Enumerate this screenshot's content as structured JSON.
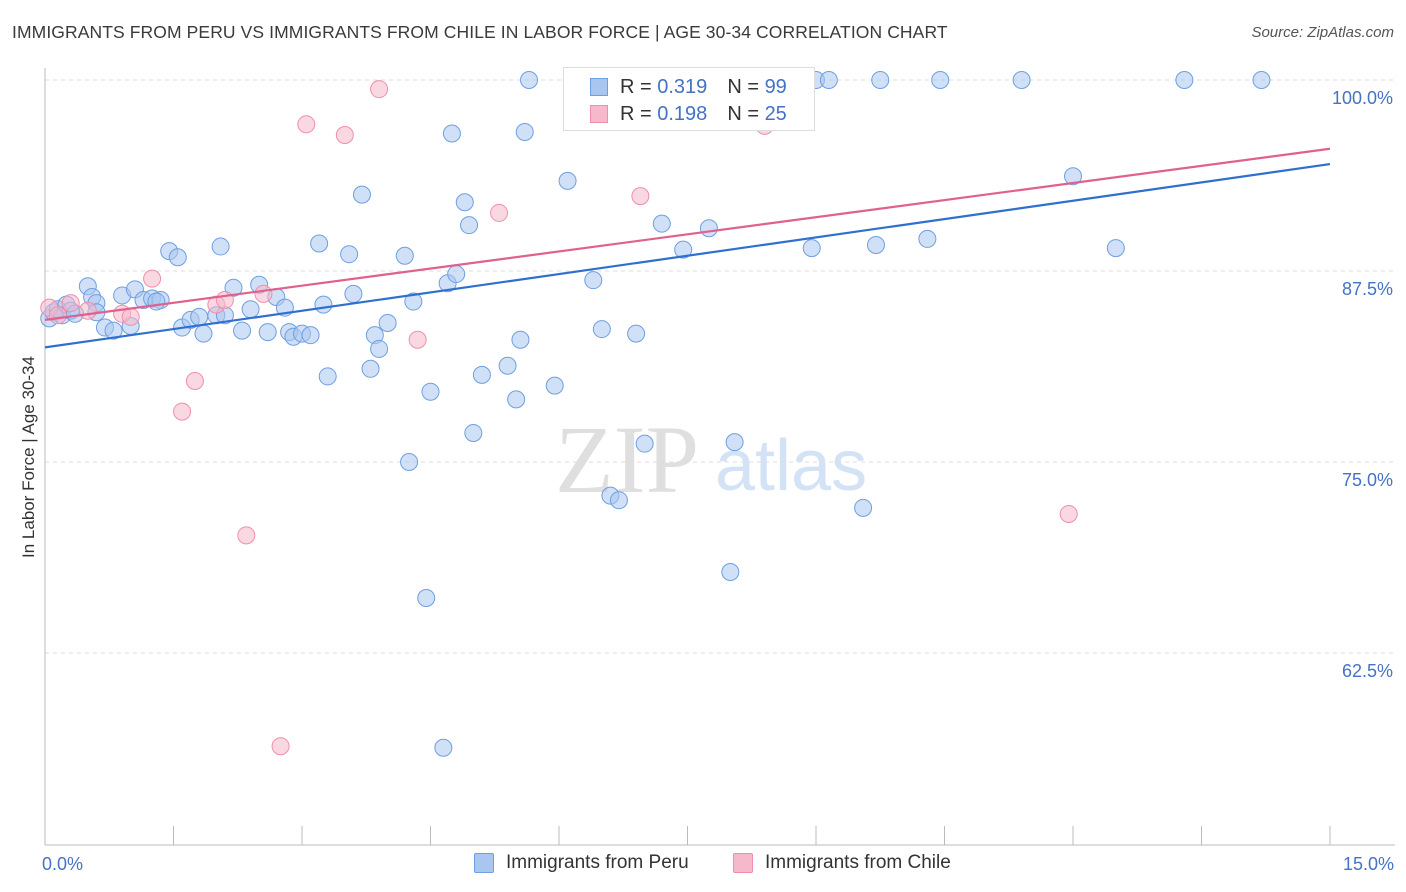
{
  "title": "IMMIGRANTS FROM PERU VS IMMIGRANTS FROM CHILE IN LABOR FORCE | AGE 30-34 CORRELATION CHART",
  "source": "Source: ZipAtlas.com",
  "watermark": {
    "zip": "ZIP",
    "atlas": "atlas"
  },
  "legend": {
    "peru": {
      "r_label": "R =",
      "r_value": "0.319",
      "n_label": "N =",
      "n_value": "99"
    },
    "chile": {
      "r_label": "R =",
      "r_value": "0.198",
      "n_label": "N =",
      "n_value": "25"
    }
  },
  "bottom_legend": {
    "peru": "Immigrants from Peru",
    "chile": "Immigrants from Chile"
  },
  "colors": {
    "peru_fill": "#a9c6f0",
    "peru_stroke": "#6f9fe0",
    "peru_line": "#2f6fcf",
    "chile_fill": "#f6b8cb",
    "chile_stroke": "#ee8fab",
    "chile_line": "#e0608e",
    "tick_label": "#4472c4"
  },
  "chart_data": {
    "type": "scatter",
    "title": "IMMIGRANTS FROM PERU VS IMMIGRANTS FROM CHILE IN LABOR FORCE | AGE 30-34 CORRELATION CHART",
    "xlabel": "",
    "ylabel": "In Labor Force | Age 30-34",
    "xlim": [
      0,
      15
    ],
    "ylim": [
      52,
      101
    ],
    "x_tick_labels": [
      "0.0%",
      "15.0%"
    ],
    "y_ticks": [
      62.5,
      75.0,
      87.5,
      100.0
    ],
    "y_tick_labels": [
      "62.5%",
      "75.0%",
      "87.5%",
      "100.0%"
    ],
    "grid": true,
    "legend_position": "top-center",
    "series": [
      {
        "name": "Immigrants from Peru",
        "trend": [
          [
            0.0,
            82.5
          ],
          [
            15.0,
            94.5
          ]
        ],
        "points": [
          [
            0.05,
            84.4
          ],
          [
            0.1,
            84.8
          ],
          [
            0.15,
            85.0
          ],
          [
            0.2,
            84.6
          ],
          [
            0.25,
            85.3
          ],
          [
            0.3,
            84.9
          ],
          [
            0.35,
            84.7
          ],
          [
            0.5,
            86.5
          ],
          [
            0.55,
            85.8
          ],
          [
            0.6,
            85.4
          ],
          [
            0.7,
            83.8
          ],
          [
            0.8,
            83.6
          ],
          [
            0.9,
            85.9
          ],
          [
            1.0,
            83.9
          ],
          [
            1.05,
            86.3
          ],
          [
            1.15,
            85.6
          ],
          [
            1.25,
            85.7
          ],
          [
            1.35,
            85.6
          ],
          [
            1.45,
            88.8
          ],
          [
            1.55,
            88.4
          ],
          [
            1.6,
            83.8
          ],
          [
            1.7,
            84.3
          ],
          [
            1.8,
            84.5
          ],
          [
            1.85,
            83.4
          ],
          [
            2.0,
            84.6
          ],
          [
            2.05,
            89.1
          ],
          [
            2.1,
            84.6
          ],
          [
            2.2,
            86.4
          ],
          [
            2.3,
            83.6
          ],
          [
            2.4,
            85.0
          ],
          [
            2.5,
            86.6
          ],
          [
            2.6,
            83.5
          ],
          [
            2.7,
            85.8
          ],
          [
            2.8,
            85.1
          ],
          [
            2.85,
            83.5
          ],
          [
            2.9,
            83.2
          ],
          [
            3.0,
            83.4
          ],
          [
            3.1,
            83.3
          ],
          [
            3.2,
            89.3
          ],
          [
            3.25,
            85.3
          ],
          [
            3.3,
            80.6
          ],
          [
            3.55,
            88.6
          ],
          [
            3.6,
            86.0
          ],
          [
            3.7,
            92.5
          ],
          [
            3.8,
            81.1
          ],
          [
            3.85,
            83.3
          ],
          [
            3.9,
            82.4
          ],
          [
            4.0,
            84.1
          ],
          [
            4.2,
            88.5
          ],
          [
            4.25,
            75.0
          ],
          [
            4.3,
            85.5
          ],
          [
            4.45,
            66.1
          ],
          [
            4.5,
            79.6
          ],
          [
            4.65,
            56.3
          ],
          [
            4.7,
            86.7
          ],
          [
            4.75,
            96.5
          ],
          [
            4.8,
            87.3
          ],
          [
            4.9,
            92.0
          ],
          [
            4.95,
            90.5
          ],
          [
            5.0,
            76.9
          ],
          [
            5.1,
            80.7
          ],
          [
            5.4,
            81.3
          ],
          [
            5.5,
            79.1
          ],
          [
            5.55,
            83.0
          ],
          [
            5.6,
            96.6
          ],
          [
            5.65,
            100.0
          ],
          [
            5.95,
            80.0
          ],
          [
            6.1,
            93.4
          ],
          [
            6.4,
            86.9
          ],
          [
            6.5,
            83.7
          ],
          [
            6.6,
            72.8
          ],
          [
            6.7,
            72.5
          ],
          [
            6.9,
            83.4
          ],
          [
            7.0,
            76.2
          ],
          [
            7.2,
            90.6
          ],
          [
            7.45,
            88.9
          ],
          [
            7.5,
            100.0
          ],
          [
            7.75,
            90.3
          ],
          [
            8.0,
            67.8
          ],
          [
            8.05,
            76.3
          ],
          [
            8.3,
            100.0
          ],
          [
            8.35,
            100.0
          ],
          [
            8.4,
            100.0
          ],
          [
            8.6,
            100.0
          ],
          [
            8.95,
            89.0
          ],
          [
            9.0,
            100.0
          ],
          [
            9.15,
            100.0
          ],
          [
            9.55,
            72.0
          ],
          [
            9.7,
            89.2
          ],
          [
            9.75,
            100.0
          ],
          [
            10.3,
            89.6
          ],
          [
            10.45,
            100.0
          ],
          [
            11.4,
            100.0
          ],
          [
            12.0,
            93.7
          ],
          [
            12.5,
            89.0
          ],
          [
            13.3,
            100.0
          ],
          [
            14.2,
            100.0
          ],
          [
            0.6,
            84.8
          ],
          [
            1.3,
            85.5
          ]
        ]
      },
      {
        "name": "Immigrants from Chile",
        "trend": [
          [
            0.0,
            84.3
          ],
          [
            15.0,
            95.5
          ]
        ],
        "points": [
          [
            0.05,
            85.1
          ],
          [
            0.15,
            84.6
          ],
          [
            0.3,
            85.4
          ],
          [
            0.5,
            84.9
          ],
          [
            0.9,
            84.7
          ],
          [
            1.0,
            84.5
          ],
          [
            1.25,
            87.0
          ],
          [
            1.6,
            78.3
          ],
          [
            1.75,
            80.3
          ],
          [
            2.0,
            85.3
          ],
          [
            2.1,
            85.6
          ],
          [
            2.35,
            70.2
          ],
          [
            2.55,
            86.0
          ],
          [
            2.75,
            56.4
          ],
          [
            3.05,
            97.1
          ],
          [
            3.5,
            96.4
          ],
          [
            3.9,
            99.4
          ],
          [
            4.35,
            83.0
          ],
          [
            5.3,
            91.3
          ],
          [
            6.15,
            100.0
          ],
          [
            6.75,
            100.0
          ],
          [
            6.95,
            92.4
          ],
          [
            8.15,
            100.0
          ],
          [
            8.4,
            97.0
          ],
          [
            11.95,
            71.6
          ]
        ]
      }
    ]
  }
}
